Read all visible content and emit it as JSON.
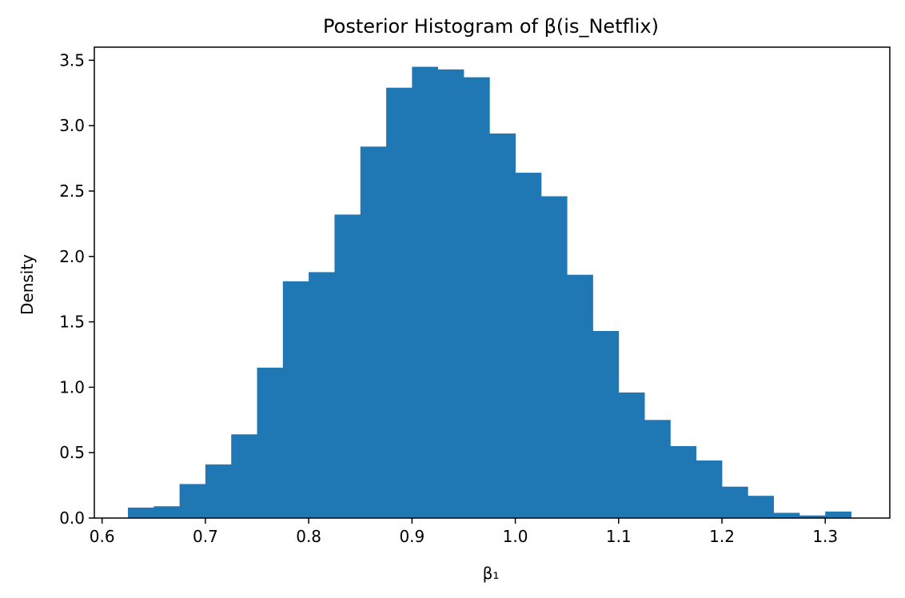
{
  "chart_data": {
    "type": "bar",
    "title": "Posterior Histogram of β(is_Netflix)",
    "xlabel": "β₁",
    "ylabel": "Density",
    "xlim": [
      0.5925,
      1.3625
    ],
    "ylim": [
      0,
      3.6
    ],
    "grid": false,
    "bin_width": 0.025,
    "bins": [
      {
        "x0": 0.625,
        "x1": 0.65,
        "density": 0.08
      },
      {
        "x0": 0.65,
        "x1": 0.675,
        "density": 0.09
      },
      {
        "x0": 0.675,
        "x1": 0.7,
        "density": 0.26
      },
      {
        "x0": 0.7,
        "x1": 0.725,
        "density": 0.41
      },
      {
        "x0": 0.725,
        "x1": 0.75,
        "density": 0.64
      },
      {
        "x0": 0.75,
        "x1": 0.775,
        "density": 1.15
      },
      {
        "x0": 0.775,
        "x1": 0.8,
        "density": 1.81
      },
      {
        "x0": 0.8,
        "x1": 0.825,
        "density": 1.88
      },
      {
        "x0": 0.825,
        "x1": 0.85,
        "density": 2.32
      },
      {
        "x0": 0.85,
        "x1": 0.875,
        "density": 2.84
      },
      {
        "x0": 0.875,
        "x1": 0.9,
        "density": 3.29
      },
      {
        "x0": 0.9,
        "x1": 0.925,
        "density": 3.45
      },
      {
        "x0": 0.925,
        "x1": 0.95,
        "density": 3.43
      },
      {
        "x0": 0.95,
        "x1": 0.975,
        "density": 3.37
      },
      {
        "x0": 0.975,
        "x1": 1.0,
        "density": 2.94
      },
      {
        "x0": 1.0,
        "x1": 1.025,
        "density": 2.64
      },
      {
        "x0": 1.025,
        "x1": 1.05,
        "density": 2.46
      },
      {
        "x0": 1.05,
        "x1": 1.075,
        "density": 1.86
      },
      {
        "x0": 1.075,
        "x1": 1.1,
        "density": 1.43
      },
      {
        "x0": 1.1,
        "x1": 1.125,
        "density": 0.96
      },
      {
        "x0": 1.125,
        "x1": 1.15,
        "density": 0.75
      },
      {
        "x0": 1.15,
        "x1": 1.175,
        "density": 0.55
      },
      {
        "x0": 1.175,
        "x1": 1.2,
        "density": 0.44
      },
      {
        "x0": 1.2,
        "x1": 1.225,
        "density": 0.24
      },
      {
        "x0": 1.225,
        "x1": 1.25,
        "density": 0.17
      },
      {
        "x0": 1.25,
        "x1": 1.275,
        "density": 0.04
      },
      {
        "x0": 1.275,
        "x1": 1.3,
        "density": 0.02
      },
      {
        "x0": 1.3,
        "x1": 1.325,
        "density": 0.05
      }
    ],
    "x_ticks": [
      0.6,
      0.7,
      0.8,
      0.9,
      1.0,
      1.1,
      1.2,
      1.3
    ],
    "x_tick_labels": [
      "0.6",
      "0.7",
      "0.8",
      "0.9",
      "1.0",
      "1.1",
      "1.2",
      "1.3"
    ],
    "y_ticks": [
      0,
      0.5,
      1.0,
      1.5,
      2.0,
      2.5,
      3.0,
      3.5
    ],
    "y_tick_labels": [
      "0.0",
      "0.5",
      "1.0",
      "1.5",
      "2.0",
      "2.5",
      "3.0",
      "3.5"
    ],
    "bar_color": "#1f77b4"
  }
}
